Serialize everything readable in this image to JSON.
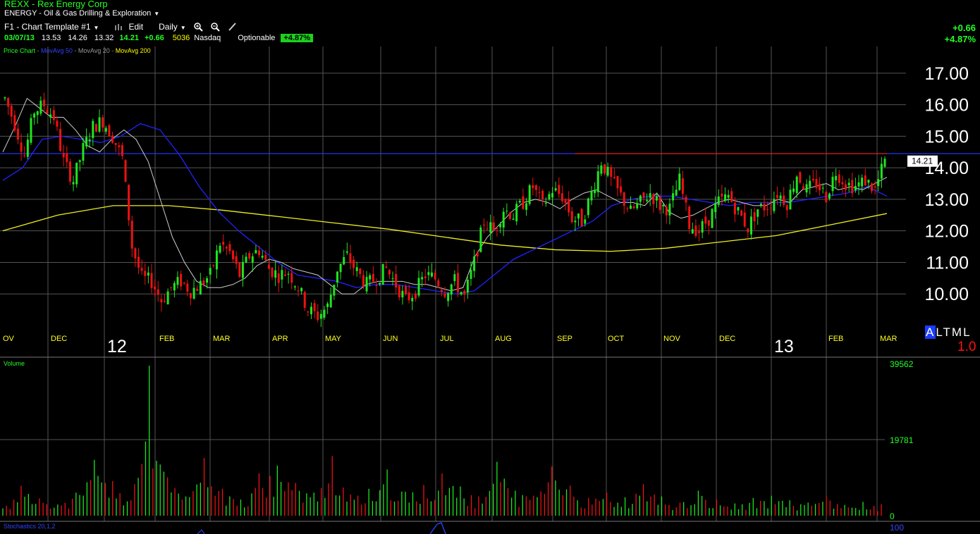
{
  "symbol_line": "REXX  - Rex Energy Corp",
  "sector_line": "ENERGY - Oil & Gas Drilling & Exploration",
  "toolbar": {
    "template_label": "F1 - Chart Template #1",
    "edit_label": "Edit",
    "period_label": "Daily",
    "zoom_in_icon": "zoom-in-icon",
    "zoom_out_icon": "zoom-out-icon",
    "draw_icon": "pencil-icon"
  },
  "quote": {
    "date": "03/07/13",
    "open": "13.53",
    "high": "14.26",
    "low": "13.32",
    "close": "14.21",
    "change": "+0.66",
    "volume": "5036",
    "exchange": "Nasdaq",
    "optionable": "Optionable",
    "pct": "+4.87%"
  },
  "right_change": "+0.66",
  "right_pct": "+4.87%",
  "price_panel": {
    "legend_price": "Price Chart",
    "legend_ma50": "MovAvg 50",
    "legend_ma20": "MovAvg 20",
    "legend_ma200": "MovAvg 200",
    "last_price_tag": "14.21"
  },
  "scale_buttons": {
    "a": "A",
    "rest": "LTML"
  },
  "multiplier": "1.0",
  "volume_panel": {
    "title": "Volume"
  },
  "stoch_panel": {
    "title": "Stochastics 20,1,2",
    "top_label": "100"
  },
  "colors": {
    "up": "#1ee61e",
    "down": "#ee1111",
    "ma50": "#2222ff",
    "ma20": "#cccccc",
    "ma200": "#eeee22",
    "grid": "#555555"
  },
  "chart_data": [
    {
      "type": "candlestick",
      "ylim": [
        9.0,
        17.8
      ],
      "yticks": [
        "17.00",
        "16.00",
        "15.00",
        "14.00",
        "13.00",
        "12.00",
        "11.00",
        "10.00"
      ],
      "ytick_values": [
        17,
        16,
        15,
        14,
        13,
        12,
        11,
        10
      ],
      "month_labels": [
        "OV",
        "DEC",
        "FEB",
        "MAR",
        "APR",
        "MAY",
        "JUN",
        "JUL",
        "AUG",
        "SEP",
        "OCT",
        "NOV",
        "DEC",
        "FEB",
        "MAR"
      ],
      "year_labels": [
        "12",
        "13"
      ],
      "resistance_level": 14.45,
      "last_price": 14.21,
      "close_series": [
        16.2,
        15.4,
        14.4,
        15.8,
        16.0,
        15.6,
        14.2,
        13.6,
        14.6,
        15.3,
        15.5,
        15.0,
        14.3,
        11.5,
        10.5,
        10.4,
        9.8,
        10.2,
        10.4,
        10.1,
        10.3,
        10.6,
        11.6,
        11.3,
        10.6,
        11.2,
        11.4,
        10.8,
        10.6,
        10.7,
        10.2,
        9.5,
        9.3,
        9.6,
        10.8,
        11.2,
        10.7,
        10.3,
        10.5,
        10.8,
        10.3,
        9.8,
        10.1,
        10.6,
        10.5,
        10.1,
        10.4,
        9.9,
        11.0,
        12.3,
        12.0,
        12.7,
        12.5,
        12.9,
        13.4,
        12.8,
        13.3,
        13.1,
        12.4,
        12.3,
        13.2,
        14.2,
        13.6,
        13.1,
        12.6,
        12.9,
        13.2,
        12.8,
        12.7,
        13.6,
        12.2,
        12.0,
        12.4,
        12.9,
        13.1,
        12.6,
        12.1,
        12.7,
        12.8,
        13.2,
        12.9,
        13.8,
        13.3,
        13.5,
        13.1,
        13.9,
        13.5,
        13.4,
        13.6,
        13.3,
        14.21
      ],
      "ma20_series": [
        14.5,
        15.3,
        16.2,
        15.9,
        15.6,
        15.6,
        15.2,
        14.7,
        14.5,
        14.9,
        15.2,
        14.9,
        14.2,
        13.0,
        11.8,
        11.0,
        10.4,
        10.2,
        10.2,
        10.3,
        10.5,
        10.9,
        11.1,
        11.0,
        10.8,
        10.7,
        10.6,
        10.3,
        10.0,
        10.0,
        10.3,
        10.4,
        10.4,
        10.4,
        10.3,
        10.3,
        10.2,
        10.1,
        10.2,
        11.2,
        11.8,
        12.2,
        12.6,
        12.9,
        13.0,
        12.9,
        12.7,
        13.0,
        13.2,
        13.3,
        13.1,
        12.9,
        12.9,
        12.8,
        13.2,
        12.6,
        12.4,
        12.5,
        12.7,
        12.9,
        13.0,
        12.9,
        12.8,
        12.8,
        13.0,
        12.9,
        13.3,
        13.4,
        13.5,
        13.3,
        13.4,
        13.3,
        13.5,
        13.7
      ],
      "ma50_series": [
        13.6,
        14.0,
        14.9,
        15.0,
        14.9,
        14.8,
        15.0,
        15.4,
        15.2,
        14.4,
        13.4,
        12.6,
        12.0,
        11.5,
        11.0,
        10.6,
        10.5,
        10.4,
        10.2,
        10.3,
        10.3,
        10.2,
        10.1,
        10.0,
        10.1,
        10.6,
        11.1,
        11.4,
        11.7,
        12.0,
        12.3,
        12.8,
        13.0,
        13.1,
        13.1,
        13.0,
        12.9,
        12.8,
        12.9,
        12.9,
        12.9,
        13.0,
        13.1,
        13.2,
        13.4,
        13.1
      ],
      "ma200_series": [
        12.0,
        12.5,
        12.8,
        12.8,
        12.65,
        12.45,
        12.25,
        12.05,
        11.8,
        11.55,
        11.4,
        11.35,
        11.45,
        11.65,
        11.85,
        12.2,
        12.55
      ]
    },
    {
      "type": "bar",
      "title": "Volume",
      "ylim": [
        0,
        39562
      ],
      "yticks": [
        "39562",
        "19781",
        "0"
      ],
      "values": [
        1900,
        7800,
        4500,
        2900,
        6000,
        14500,
        9000,
        4000,
        39000,
        10000,
        5000,
        15000,
        7000,
        4200,
        11000,
        13000,
        8500,
        6000,
        15500,
        5500,
        7000,
        12000,
        6200,
        8000,
        11000,
        7600,
        5000,
        14000,
        6500,
        5200,
        12800,
        7800,
        4600,
        6000,
        4800,
        8200,
        5000,
        3400,
        6500,
        4200,
        3200,
        4600,
        5200,
        4000,
        3400,
        5000,
        2800,
        3600,
        3000
      ]
    },
    {
      "type": "line",
      "title": "Stochastics 20,1,2",
      "ylim": [
        0,
        100
      ],
      "yticks": [
        "100"
      ]
    }
  ]
}
